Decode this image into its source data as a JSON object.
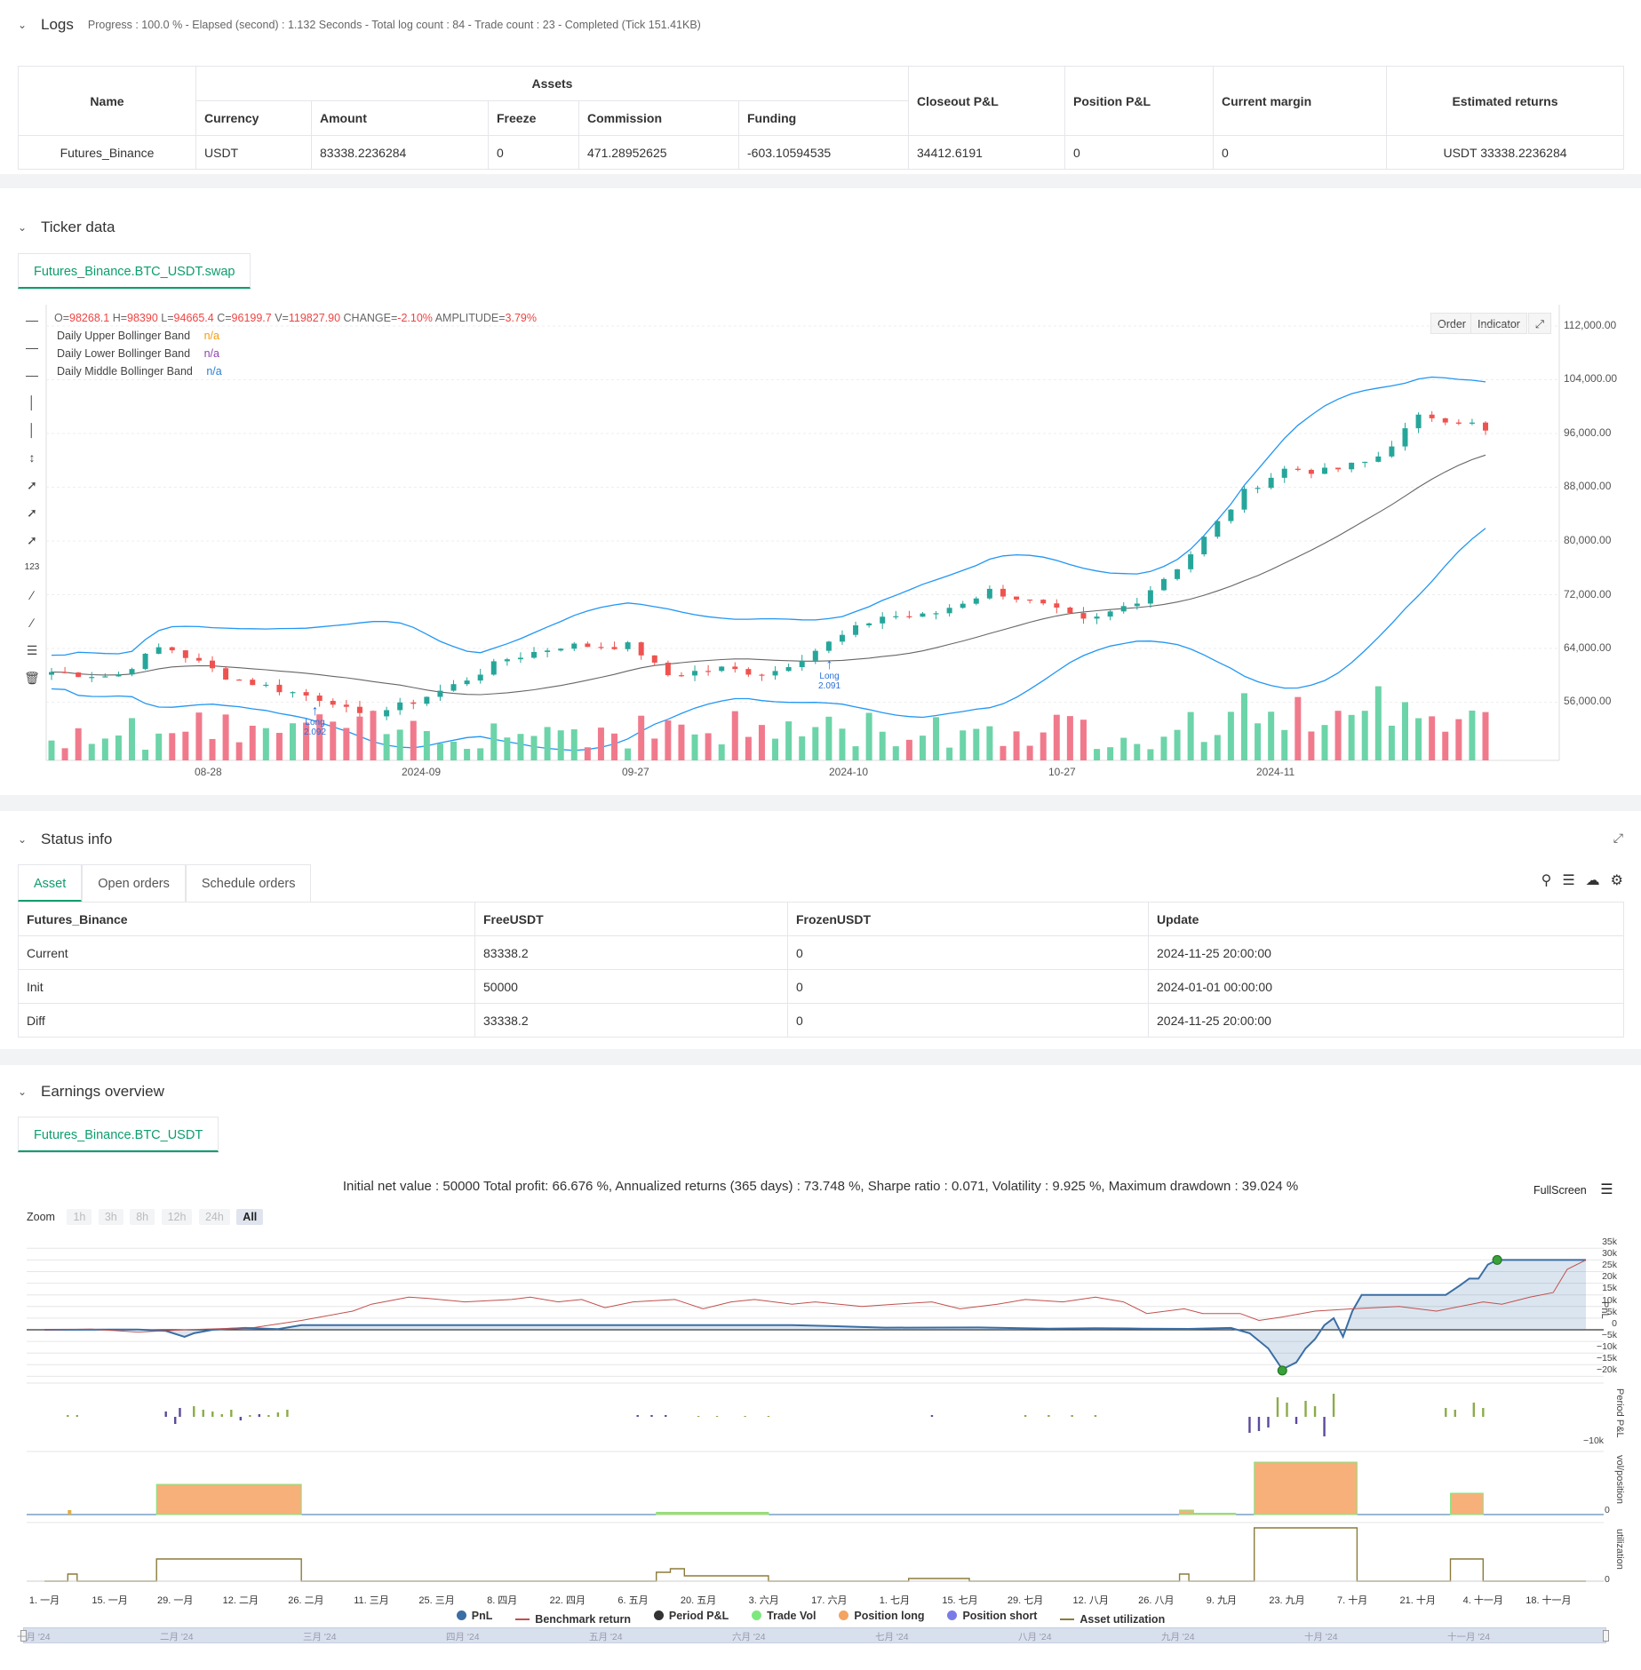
{
  "logs": {
    "title": "Logs",
    "summary": "Progress : 100.0 % - Elapsed (second) : 1.132  Seconds - Total log count : 84 - Trade count : 23 - Completed (Tick 151.41KB)"
  },
  "assets_table": {
    "headers": {
      "name": "Name",
      "assets": "Assets",
      "currency": "Currency",
      "amount": "Amount",
      "freeze": "Freeze",
      "commission": "Commission",
      "funding": "Funding",
      "closeout_pnl": "Closeout P&L",
      "position_pnl": "Position P&L",
      "current_margin": "Current margin",
      "estimated_returns": "Estimated returns"
    },
    "row": {
      "name": "Futures_Binance",
      "currency": "USDT",
      "amount": "83338.2236284",
      "freeze": "0",
      "commission": "471.28952625",
      "funding": "-603.10594535",
      "closeout_pnl": "34412.6191",
      "position_pnl": "0",
      "current_margin": "0",
      "estimated_returns": "USDT 33338.2236284"
    }
  },
  "ticker": {
    "title": "Ticker data",
    "tab": "Futures_Binance.BTC_USDT.swap",
    "ohlc": {
      "o_label": "O=",
      "o": "98268.1",
      "h_label": "H=",
      "h": "98390",
      "l_label": "L=",
      "l": "94665.4",
      "c_label": "C=",
      "c": "96199.7",
      "v_label": "V=",
      "v": "119827.90",
      "change_label": "CHANGE=",
      "change": "-2.10%",
      "amp_label": "AMPLITUDE=",
      "amp": "3.79%"
    },
    "legend": [
      {
        "label": "Daily Upper Bollinger Band",
        "value": "n/a",
        "color": "#f39c12"
      },
      {
        "label": "Daily Lower Bollinger Band",
        "value": "n/a",
        "color": "#8e44ad"
      },
      {
        "label": "Daily Middle Bollinger Band",
        "value": "n/a",
        "color": "#2a7fd4"
      }
    ],
    "buttons": {
      "order": "Order",
      "indicator": "Indicator"
    },
    "y_ticks": [
      "112,000.00",
      "104,000.00",
      "96,000.00",
      "88,000.00",
      "80,000.00",
      "72,000.00",
      "64,000.00",
      "56,000.00"
    ],
    "x_ticks": [
      "08-28",
      "2024-09",
      "09-27",
      "2024-10",
      "10-27",
      "2024-11"
    ],
    "markers": [
      {
        "label": "Long",
        "value": "2.092"
      },
      {
        "label": "Long",
        "value": "2.091"
      }
    ],
    "colors": {
      "up": "#26a69a",
      "down": "#ef5350",
      "band": "#2196f3",
      "middle": "#555555"
    }
  },
  "status": {
    "title": "Status info",
    "tabs": [
      "Asset",
      "Open orders",
      "Schedule orders"
    ],
    "headers": [
      "Futures_Binance",
      "FreeUSDT",
      "FrozenUSDT",
      "Update"
    ],
    "rows": [
      {
        "label": "Current",
        "free": "83338.2",
        "frozen": "0",
        "update": "2024-11-25 20:00:00"
      },
      {
        "label": "Init",
        "free": "50000",
        "frozen": "0",
        "update": "2024-01-01 00:00:00"
      },
      {
        "label": "Diff",
        "free": "33338.2",
        "frozen": "0",
        "update": "2024-11-25 20:00:00"
      }
    ]
  },
  "earnings": {
    "title": "Earnings overview",
    "tab": "Futures_Binance.BTC_USDT",
    "summary": "Initial net value : 50000 Total profit: 66.676 %, Annualized returns (365 days) : 73.748 %, Sharpe ratio : 0.071, Volatility : 9.925 %, Maximum drawdown : 39.024 %",
    "fullscreen": "FullScreen",
    "zoom_label": "Zoom",
    "zoom_options": [
      "1h",
      "3h",
      "8h",
      "12h",
      "24h",
      "All"
    ],
    "pnl_ticks": [
      "35k",
      "30k",
      "25k",
      "20k",
      "15k",
      "10k",
      "5k",
      "0",
      "−5k",
      "−10k",
      "−15k",
      "−20k"
    ],
    "axis_titles": [
      "PnL",
      "Period P&L",
      "vol/position",
      "utilization"
    ],
    "period_tick": "−10k",
    "zero": "0",
    "x_ticks": [
      "1. 一月",
      "15. 一月",
      "29. 一月",
      "12. 二月",
      "26. 二月",
      "11. 三月",
      "25. 三月",
      "8. 四月",
      "22. 四月",
      "6. 五月",
      "20. 五月",
      "3. 六月",
      "17. 六月",
      "1. 七月",
      "15. 七月",
      "29. 七月",
      "12. 八月",
      "26. 八月",
      "9. 九月",
      "23. 九月",
      "7. 十月",
      "21. 十月",
      "4. 十一月",
      "18. 十一月"
    ],
    "navigator_ticks": [
      "一月 '24",
      "二月 '24",
      "三月 '24",
      "四月 '24",
      "五月 '24",
      "六月 '24",
      "七月 '24",
      "八月 '24",
      "九月 '24",
      "十月 '24",
      "十一月 '24"
    ],
    "legend": [
      {
        "label": "PnL",
        "color": "#3a6ea5",
        "kind": "dot"
      },
      {
        "label": "Benchmark return",
        "color": "#c0504d",
        "kind": "line"
      },
      {
        "label": "Period P&L",
        "color": "#333333",
        "kind": "dot"
      },
      {
        "label": "Trade Vol",
        "color": "#7ee87e",
        "kind": "dot"
      },
      {
        "label": "Position long",
        "color": "#f4a460",
        "kind": "dot"
      },
      {
        "label": "Position short",
        "color": "#7b7be8",
        "kind": "dot"
      },
      {
        "label": "Asset utilization",
        "color": "#8b7b3a",
        "kind": "line"
      }
    ]
  }
}
